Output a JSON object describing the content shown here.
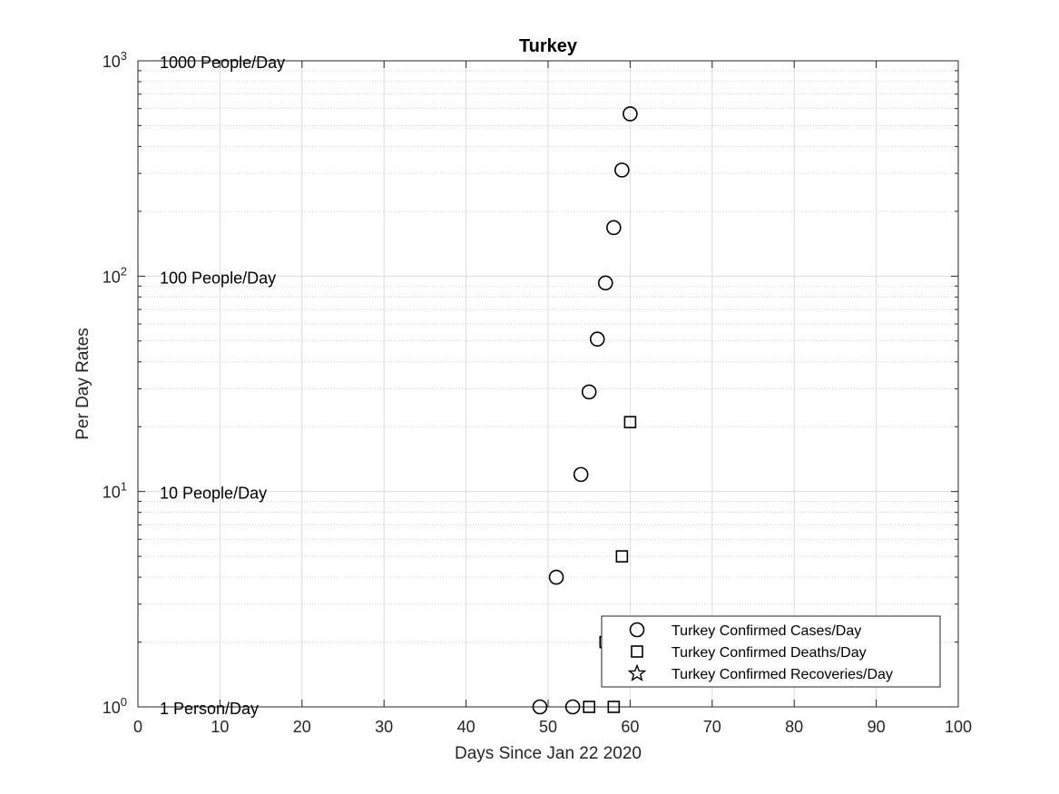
{
  "chart_data": {
    "type": "scatter",
    "title": "Turkey",
    "xlabel": "Days Since Jan 22 2020",
    "ylabel": "Per Day Rates",
    "xlim": [
      0,
      100
    ],
    "ylim": [
      1,
      1000
    ],
    "yscale": "log",
    "grid": true,
    "minor_grid": true,
    "legend_position": "bottom-right",
    "x_ticks": [
      0,
      10,
      20,
      30,
      40,
      50,
      60,
      70,
      80,
      90,
      100
    ],
    "y_ticks": [
      {
        "value": 1,
        "base": "10",
        "exp": "0"
      },
      {
        "value": 10,
        "base": "10",
        "exp": "1"
      },
      {
        "value": 100,
        "base": "10",
        "exp": "2"
      },
      {
        "value": 1000,
        "base": "10",
        "exp": "3"
      }
    ],
    "reference_labels": [
      {
        "text": "1000 People/Day",
        "value": 1000
      },
      {
        "text": "100 People/Day",
        "value": 100
      },
      {
        "text": "10 People/Day",
        "value": 10
      },
      {
        "text": "1 Person/Day",
        "value": 1
      }
    ],
    "series": [
      {
        "name": "Turkey Confirmed Cases/Day",
        "marker": "circle",
        "color": "#000000",
        "points": [
          [
            49,
            1
          ],
          [
            51,
            4
          ],
          [
            53,
            1
          ],
          [
            54,
            12
          ],
          [
            55,
            29
          ],
          [
            56,
            51
          ],
          [
            57,
            93
          ],
          [
            58,
            168
          ],
          [
            59,
            311
          ],
          [
            60,
            567
          ]
        ]
      },
      {
        "name": "Turkey Confirmed Deaths/Day",
        "marker": "square",
        "color": "#000000",
        "points": [
          [
            55,
            1
          ],
          [
            57,
            2
          ],
          [
            58,
            1
          ],
          [
            59,
            5
          ],
          [
            60,
            21
          ]
        ]
      },
      {
        "name": "Turkey Confirmed Recoveries/Day",
        "marker": "star",
        "color": "#000000",
        "points": []
      }
    ]
  }
}
